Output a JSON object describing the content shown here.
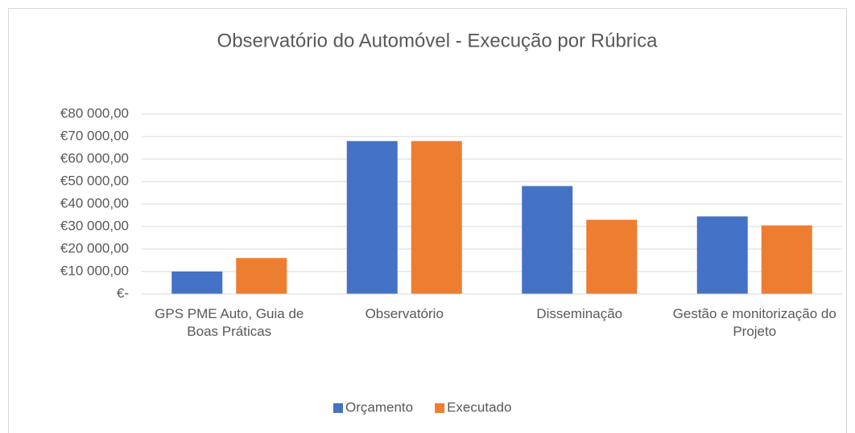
{
  "chart_data": {
    "type": "bar",
    "title": "Observatório do Automóvel -  Execução por Rúbrica",
    "categories": [
      "GPS PME Auto, Guia de Boas Práticas",
      "Observatório",
      "Disseminação",
      "Gestão e monitorização do Projeto"
    ],
    "series": [
      {
        "name": "Orçamento",
        "color": "#4472c4",
        "values": [
          10000,
          68000,
          48000,
          34500
        ]
      },
      {
        "name": "Executado",
        "color": "#ed7d31",
        "values": [
          16000,
          68000,
          33000,
          30500
        ]
      }
    ],
    "ylim": [
      0,
      80000
    ],
    "yticks": [
      {
        "value": 0,
        "label": "€-"
      },
      {
        "value": 10000,
        "label": "€10 000,00"
      },
      {
        "value": 20000,
        "label": "€20 000,00"
      },
      {
        "value": 30000,
        "label": "€30 000,00"
      },
      {
        "value": 40000,
        "label": "€40 000,00"
      },
      {
        "value": 50000,
        "label": "€50 000,00"
      },
      {
        "value": 60000,
        "label": "€60 000,00"
      },
      {
        "value": 70000,
        "label": "€70 000,00"
      },
      {
        "value": 80000,
        "label": "€80 000,00"
      }
    ],
    "grid": true,
    "legend": "bottom"
  }
}
